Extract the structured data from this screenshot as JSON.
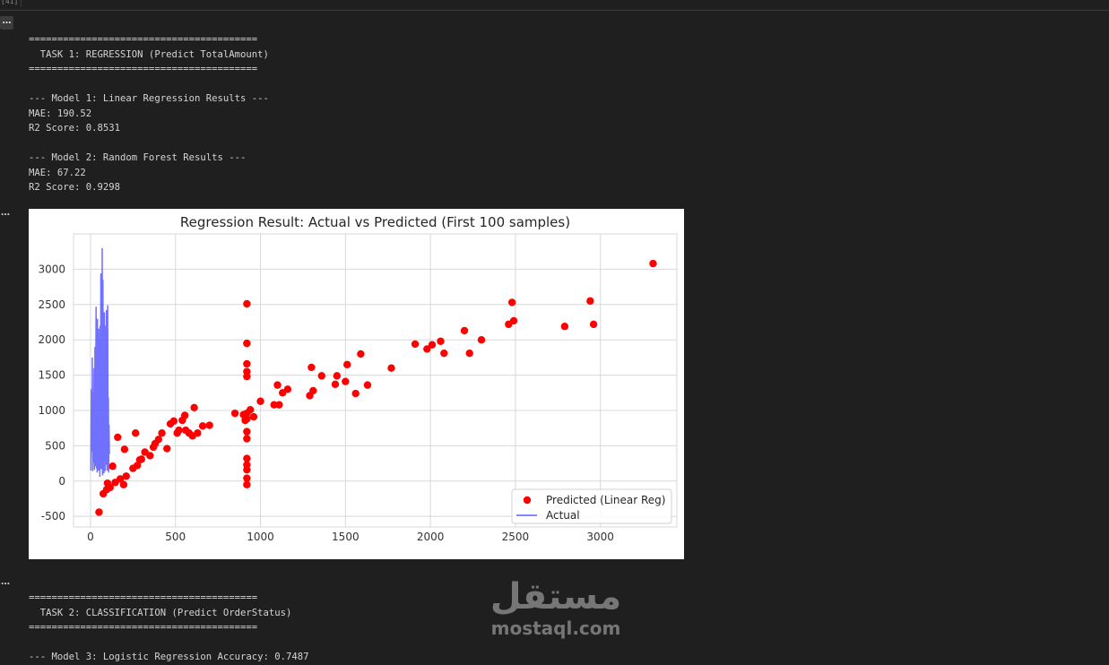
{
  "cell": {
    "execution_count": "[41]",
    "toggle_icon": "…",
    "ellipsis": "…"
  },
  "output": {
    "lines": [
      "========================================",
      "  TASK 1: REGRESSION (Predict TotalAmount)",
      "========================================",
      "",
      "--- Model 1: Linear Regression Results ---",
      "MAE: 190.52",
      "R2 Score: 0.8531",
      "",
      "--- Model 2: Random Forest Results ---",
      "MAE: 67.22",
      "R2 Score: 0.9298"
    ],
    "lines_after": [
      "========================================",
      "  TASK 2: CLASSIFICATION (Predict OrderStatus)",
      "========================================",
      "",
      "--- Model 3: Logistic Regression Accuracy: 0.7487"
    ]
  },
  "watermark": {
    "arabic": "مستقل",
    "latin": "mostaql.com"
  },
  "chart_data": {
    "type": "scatter",
    "title": "Regression Result: Actual vs Predicted (First 100 samples)",
    "xlabel": "",
    "ylabel": "",
    "xlim": [
      -100,
      3450
    ],
    "ylim": [
      -650,
      3500
    ],
    "xticks": [
      0,
      500,
      1000,
      1500,
      2000,
      2500,
      3000
    ],
    "yticks": [
      -500,
      0,
      500,
      1000,
      1500,
      2000,
      2500,
      3000
    ],
    "grid": true,
    "legend_position": "lower-right",
    "series": [
      {
        "name": "Predicted (Linear Reg)",
        "kind": "scatter",
        "color": "#ff0000",
        "points": [
          [
            50,
            -440
          ],
          [
            75,
            -180
          ],
          [
            95,
            -120
          ],
          [
            100,
            -30
          ],
          [
            115,
            -90
          ],
          [
            130,
            210
          ],
          [
            145,
            -20
          ],
          [
            160,
            620
          ],
          [
            175,
            30
          ],
          [
            195,
            -50
          ],
          [
            200,
            450
          ],
          [
            210,
            70
          ],
          [
            250,
            180
          ],
          [
            265,
            680
          ],
          [
            275,
            220
          ],
          [
            290,
            300
          ],
          [
            300,
            310
          ],
          [
            320,
            410
          ],
          [
            350,
            360
          ],
          [
            370,
            480
          ],
          [
            380,
            530
          ],
          [
            400,
            590
          ],
          [
            420,
            680
          ],
          [
            450,
            460
          ],
          [
            470,
            810
          ],
          [
            490,
            850
          ],
          [
            510,
            680
          ],
          [
            520,
            720
          ],
          [
            540,
            860
          ],
          [
            555,
            930
          ],
          [
            560,
            720
          ],
          [
            580,
            680
          ],
          [
            600,
            640
          ],
          [
            610,
            1040
          ],
          [
            630,
            680
          ],
          [
            660,
            780
          ],
          [
            700,
            790
          ],
          [
            850,
            960
          ],
          [
            900,
            940
          ],
          [
            910,
            860
          ],
          [
            920,
            -50
          ],
          [
            920,
            40
          ],
          [
            920,
            160
          ],
          [
            920,
            230
          ],
          [
            920,
            320
          ],
          [
            920,
            600
          ],
          [
            920,
            700
          ],
          [
            920,
            880
          ],
          [
            920,
            960
          ],
          [
            920,
            1480
          ],
          [
            920,
            1550
          ],
          [
            920,
            1660
          ],
          [
            920,
            1950
          ],
          [
            920,
            2510
          ],
          [
            940,
            1010
          ],
          [
            960,
            910
          ],
          [
            1000,
            1130
          ],
          [
            1080,
            1080
          ],
          [
            1100,
            1360
          ],
          [
            1110,
            1080
          ],
          [
            1130,
            1250
          ],
          [
            1160,
            1300
          ],
          [
            1290,
            1210
          ],
          [
            1300,
            1610
          ],
          [
            1310,
            1280
          ],
          [
            1360,
            1490
          ],
          [
            1440,
            1370
          ],
          [
            1450,
            1490
          ],
          [
            1500,
            1410
          ],
          [
            1510,
            1650
          ],
          [
            1560,
            1240
          ],
          [
            1590,
            1800
          ],
          [
            1630,
            1360
          ],
          [
            1770,
            1600
          ],
          [
            1910,
            1940
          ],
          [
            1980,
            1870
          ],
          [
            2010,
            1930
          ],
          [
            2060,
            1980
          ],
          [
            2080,
            1810
          ],
          [
            2200,
            2130
          ],
          [
            2230,
            1810
          ],
          [
            2300,
            2000
          ],
          [
            2460,
            2220
          ],
          [
            2480,
            2530
          ],
          [
            2490,
            2270
          ],
          [
            2790,
            2190
          ],
          [
            2940,
            2550
          ],
          [
            2960,
            2220
          ],
          [
            3310,
            3080
          ]
        ]
      },
      {
        "name": "Actual",
        "kind": "line",
        "color": "#6262ff",
        "points": [
          [
            2,
            150
          ],
          [
            5,
            1300
          ],
          [
            8,
            420
          ],
          [
            11,
            1750
          ],
          [
            13,
            140
          ],
          [
            16,
            1250
          ],
          [
            18,
            260
          ],
          [
            21,
            1600
          ],
          [
            23,
            160
          ],
          [
            26,
            1900
          ],
          [
            28,
            210
          ],
          [
            30,
            900
          ],
          [
            33,
            2470
          ],
          [
            35,
            180
          ],
          [
            37,
            1280
          ],
          [
            39,
            120
          ],
          [
            41,
            2300
          ],
          [
            43,
            320
          ],
          [
            45,
            1550
          ],
          [
            47,
            150
          ],
          [
            49,
            2160
          ],
          [
            51,
            480
          ],
          [
            53,
            1800
          ],
          [
            55,
            60
          ],
          [
            57,
            2200
          ],
          [
            59,
            400
          ],
          [
            61,
            2940
          ],
          [
            63,
            170
          ],
          [
            65,
            1720
          ],
          [
            67,
            650
          ],
          [
            69,
            3300
          ],
          [
            71,
            80
          ],
          [
            73,
            2850
          ],
          [
            75,
            250
          ],
          [
            77,
            1200
          ],
          [
            79,
            110
          ],
          [
            81,
            2390
          ],
          [
            83,
            320
          ],
          [
            85,
            2200
          ],
          [
            87,
            140
          ],
          [
            89,
            1350
          ],
          [
            91,
            230
          ],
          [
            93,
            2420
          ],
          [
            95,
            370
          ],
          [
            97,
            1100
          ],
          [
            99,
            150
          ],
          [
            101,
            2490
          ],
          [
            103,
            560
          ],
          [
            105,
            1180
          ],
          [
            107,
            120
          ],
          [
            109,
            800
          ],
          [
            111,
            380
          ]
        ]
      }
    ]
  }
}
